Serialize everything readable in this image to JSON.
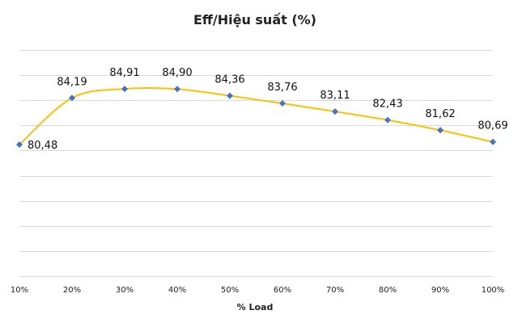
{
  "chart_data": {
    "type": "line",
    "title": "Eff/Hiệu suất (%)",
    "xlabel": "% Load",
    "ylabel": "",
    "categories": [
      "10%",
      "20%",
      "30%",
      "40%",
      "50%",
      "60%",
      "70%",
      "80%",
      "90%",
      "100%"
    ],
    "values": [
      80.48,
      84.19,
      84.91,
      84.9,
      84.36,
      83.76,
      83.11,
      82.43,
      81.62,
      80.69
    ],
    "data_labels": [
      "80,48",
      "84,19",
      "84,91",
      "84,90",
      "84,36",
      "83,76",
      "83,11",
      "82,43",
      "81,62",
      "80,69"
    ],
    "ylim": [
      70,
      88
    ],
    "grid": true,
    "legend": "none",
    "line_color": "#ffc000",
    "marker_color": "#4472c4",
    "grid_color": "#d9d9d9",
    "smooth": true
  }
}
